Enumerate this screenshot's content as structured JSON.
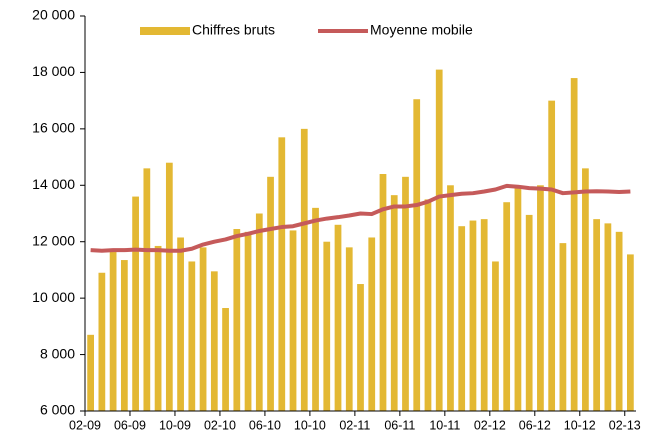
{
  "chart_data": {
    "type": "bar_line",
    "categories": [
      "02-09",
      null,
      null,
      null,
      "06-09",
      null,
      null,
      null,
      "10-09",
      null,
      null,
      null,
      "02-10",
      null,
      null,
      null,
      "06-10",
      null,
      null,
      null,
      "10-10",
      null,
      null,
      null,
      "02-11",
      null,
      null,
      null,
      "06-11",
      null,
      null,
      null,
      "10-11",
      null,
      null,
      null,
      "02-12",
      null,
      null,
      null,
      "06-12",
      null,
      null,
      null,
      "10-12",
      null,
      null,
      null,
      "02-13"
    ],
    "series": [
      {
        "name": "Chiffres bruts",
        "color": "#e3b833",
        "kind": "bar",
        "values": [
          8700,
          10900,
          11700,
          11350,
          13600,
          14600,
          11850,
          14800,
          12150,
          11300,
          11800,
          10950,
          9650,
          12450,
          12350,
          13000,
          14300,
          15700,
          12400,
          16000,
          13200,
          12000,
          12600,
          11800,
          10500,
          12150,
          14400,
          13650,
          14300,
          17050,
          13500,
          18100,
          14000,
          12550,
          12750,
          12800,
          11300,
          13400,
          13900,
          12950,
          14000,
          17000,
          11950,
          17800,
          14600,
          12800,
          12650,
          12350,
          11550
        ]
      },
      {
        "name": "Moyenne mobile",
        "color": "#c55a5a",
        "kind": "line",
        "values": [
          11700,
          11680,
          11700,
          11700,
          11720,
          11700,
          11700,
          11680,
          11680,
          11750,
          11900,
          12000,
          12080,
          12200,
          12280,
          12380,
          12450,
          12520,
          12550,
          12650,
          12750,
          12820,
          12870,
          12930,
          13000,
          12980,
          13150,
          13250,
          13250,
          13300,
          13420,
          13600,
          13650,
          13700,
          13720,
          13780,
          13850,
          13980,
          13950,
          13900,
          13880,
          13850,
          13720,
          13750,
          13780,
          13790,
          13780,
          13760,
          13780
        ]
      }
    ],
    "ylim": [
      6000,
      20000
    ],
    "yticks": [
      {
        "value": 6000,
        "label": "6 000"
      },
      {
        "value": 8000,
        "label": "8 000"
      },
      {
        "value": 10000,
        "label": "10 000"
      },
      {
        "value": 12000,
        "label": "12 000"
      },
      {
        "value": 14000,
        "label": "14 000"
      },
      {
        "value": 16000,
        "label": "16 000"
      },
      {
        "value": 18000,
        "label": "18 000"
      },
      {
        "value": 20000,
        "label": "20 000"
      }
    ],
    "legend": "top"
  }
}
